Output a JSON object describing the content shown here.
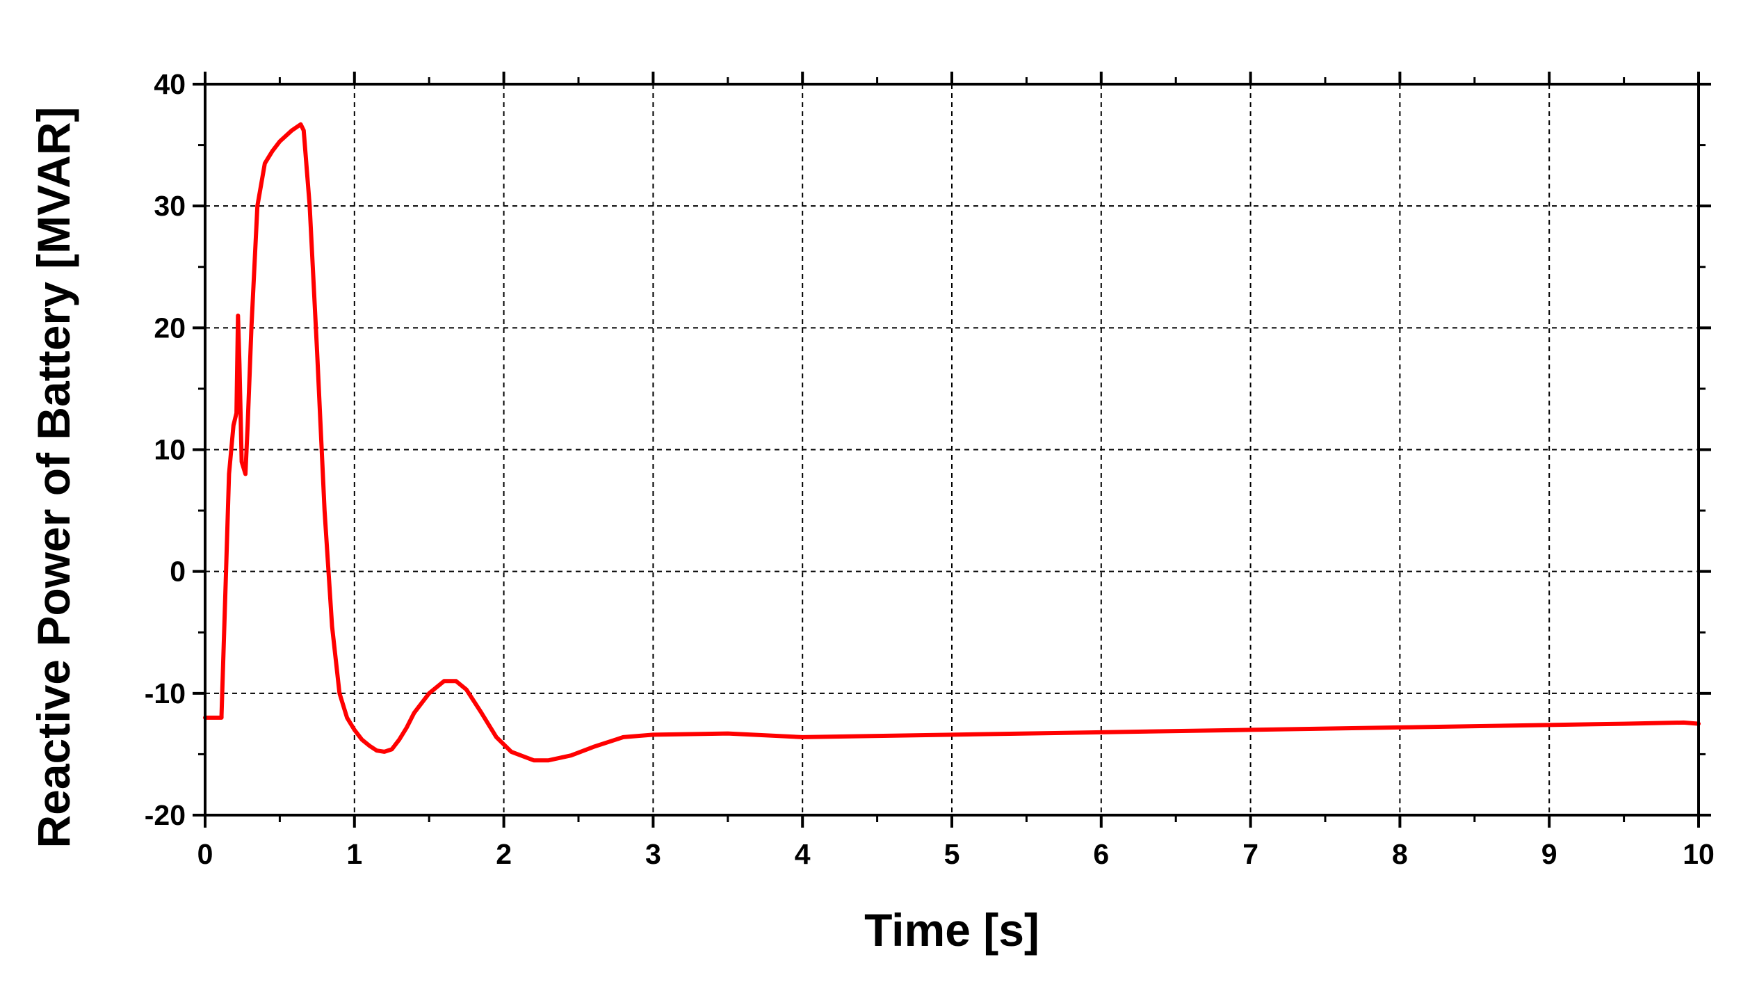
{
  "chart_data": {
    "type": "line",
    "title": "",
    "xlabel": "Time [s]",
    "ylabel": "Reactive Power of Battery [MVAR]",
    "xlim": [
      0,
      10
    ],
    "ylim": [
      -20,
      40
    ],
    "x_ticks": [
      0,
      1,
      2,
      3,
      4,
      5,
      6,
      7,
      8,
      9,
      10
    ],
    "y_ticks": [
      -20,
      -10,
      0,
      10,
      20,
      30,
      40
    ],
    "x_tick_labels": [
      "0",
      "1",
      "2",
      "3",
      "4",
      "5",
      "6",
      "7",
      "8",
      "9",
      "10"
    ],
    "y_tick_labels": [
      "-20",
      "-10",
      "0",
      "10",
      "20",
      "30",
      "40"
    ],
    "grid": true,
    "legend": "none",
    "series": [
      {
        "color": "#ff0000",
        "x": [
          0,
          0.11,
          0.11,
          0.14,
          0.16,
          0.19,
          0.21,
          0.22,
          0.23,
          0.245,
          0.27,
          0.285,
          0.31,
          0.35,
          0.4,
          0.45,
          0.5,
          0.58,
          0.64,
          0.66,
          0.7,
          0.75,
          0.8,
          0.85,
          0.9,
          0.95,
          1.0,
          1.05,
          1.1,
          1.15,
          1.2,
          1.25,
          1.3,
          1.35,
          1.4,
          1.5,
          1.6,
          1.68,
          1.75,
          1.85,
          1.95,
          2.05,
          2.2,
          2.3,
          2.45,
          2.6,
          2.8,
          3.0,
          3.5,
          4.0,
          4.5,
          5.0,
          5.5,
          6.0,
          6.5,
          7.0,
          7.5,
          8.0,
          8.5,
          9.0,
          9.5,
          9.9,
          10.0
        ],
        "y": [
          -12,
          -12,
          -11.8,
          0,
          8,
          12,
          13,
          21,
          17,
          9,
          8,
          12,
          20,
          30,
          33.5,
          34.5,
          35.3,
          36.2,
          36.7,
          36.2,
          30,
          18,
          5,
          -4.5,
          -10,
          -12,
          -13,
          -13.8,
          -14.3,
          -14.7,
          -14.8,
          -14.6,
          -13.8,
          -12.8,
          -11.6,
          -10,
          -9,
          -9,
          -9.7,
          -11.6,
          -13.6,
          -14.8,
          -15.5,
          -15.5,
          -15.1,
          -14.4,
          -13.6,
          -13.4,
          -13.3,
          -13.6,
          -13.5,
          -13.4,
          -13.3,
          -13.2,
          -13.1,
          -13,
          -12.9,
          -12.8,
          -12.7,
          -12.6,
          -12.5,
          -12.4,
          -12.5
        ]
      }
    ]
  }
}
